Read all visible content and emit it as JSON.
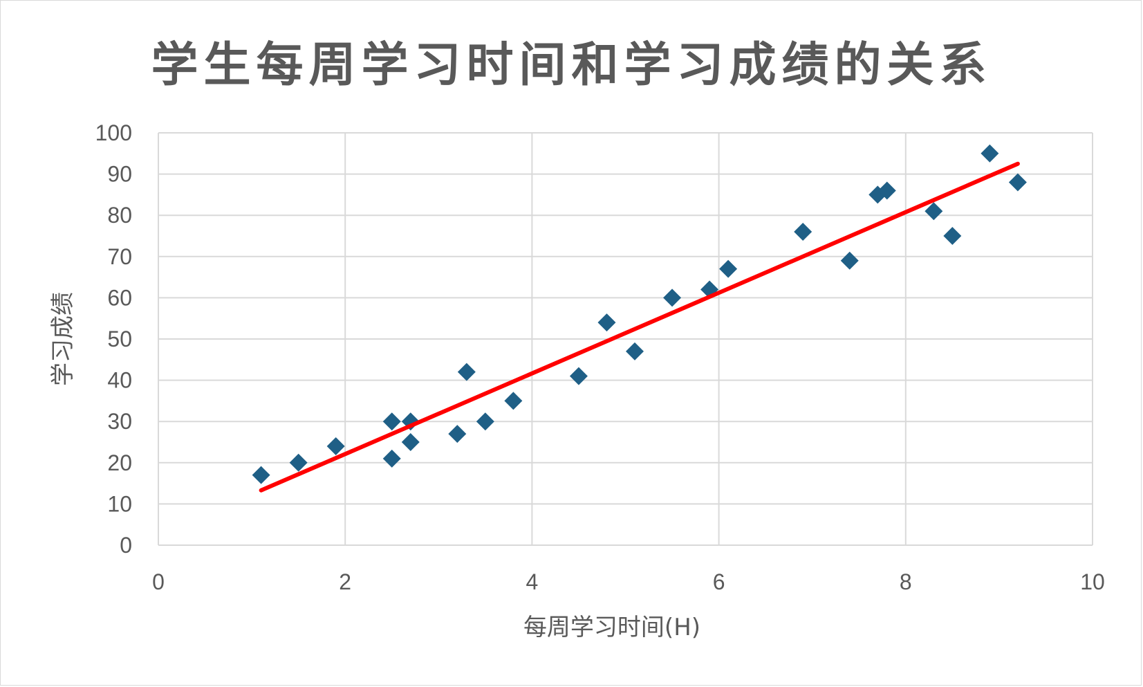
{
  "chart_data": {
    "type": "scatter",
    "title": "学生每周学习时间和学习成绩的关系",
    "xlabel": "每周学习时间(H)",
    "ylabel": "学习成绩",
    "xlim": [
      0,
      10
    ],
    "ylim": [
      0,
      100
    ],
    "x_ticks": [
      "0",
      "2",
      "4",
      "6",
      "8",
      "10"
    ],
    "y_ticks": [
      "0",
      "10",
      "20",
      "30",
      "40",
      "50",
      "60",
      "70",
      "80",
      "90",
      "100"
    ],
    "grid": true,
    "marker": "diamond",
    "marker_color": "#1f5f86",
    "trendline_color": "#ff0000",
    "points": [
      {
        "x": 1.1,
        "y": 17
      },
      {
        "x": 1.5,
        "y": 20
      },
      {
        "x": 1.9,
        "y": 24
      },
      {
        "x": 2.5,
        "y": 30
      },
      {
        "x": 2.5,
        "y": 21
      },
      {
        "x": 2.7,
        "y": 30
      },
      {
        "x": 2.7,
        "y": 25
      },
      {
        "x": 3.2,
        "y": 27
      },
      {
        "x": 3.3,
        "y": 42
      },
      {
        "x": 3.5,
        "y": 30
      },
      {
        "x": 3.8,
        "y": 35
      },
      {
        "x": 4.5,
        "y": 41
      },
      {
        "x": 4.8,
        "y": 54
      },
      {
        "x": 5.1,
        "y": 47
      },
      {
        "x": 5.5,
        "y": 60
      },
      {
        "x": 5.9,
        "y": 62
      },
      {
        "x": 6.1,
        "y": 67
      },
      {
        "x": 6.9,
        "y": 76
      },
      {
        "x": 7.4,
        "y": 69
      },
      {
        "x": 7.7,
        "y": 85
      },
      {
        "x": 7.8,
        "y": 86
      },
      {
        "x": 8.3,
        "y": 81
      },
      {
        "x": 8.5,
        "y": 75
      },
      {
        "x": 8.9,
        "y": 95
      },
      {
        "x": 9.2,
        "y": 88
      }
    ],
    "trendline": {
      "x1": 1.1,
      "y1": 13.3,
      "x2": 9.2,
      "y2": 92.5
    }
  }
}
